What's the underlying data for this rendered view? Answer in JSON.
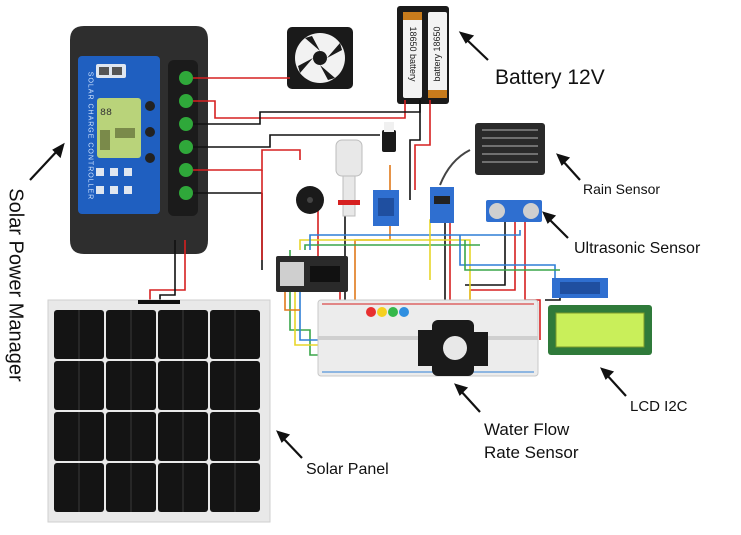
{
  "labels": {
    "battery": "Battery 12V",
    "rain_sensor": "Rain Sensor",
    "ultrasonic_sensor": "Ultrasonic Sensor",
    "lcd": "LCD I2C",
    "water_flow_line1": "Water Flow",
    "water_flow_line2": "Rate Sensor",
    "solar_panel": "Solar Panel",
    "solar_power_manager": "Solar Power Manager"
  },
  "battery_cells": {
    "cell1": "18650 battery",
    "cell2": "battery 18650"
  },
  "charge_controller": {
    "title": "SOLAR CHARGE CONTROLLER"
  },
  "colors": {
    "controller_blue": "#1f5fc0",
    "controller_body": "#2b2b2b",
    "lcd_green": "#c9ef5a",
    "wire_red": "#d62020",
    "wire_black": "#111111",
    "wire_orange": "#e07a1c",
    "wire_yellow": "#e8d52a",
    "wire_green": "#3aa64a",
    "wire_blue": "#2f7fd6"
  }
}
